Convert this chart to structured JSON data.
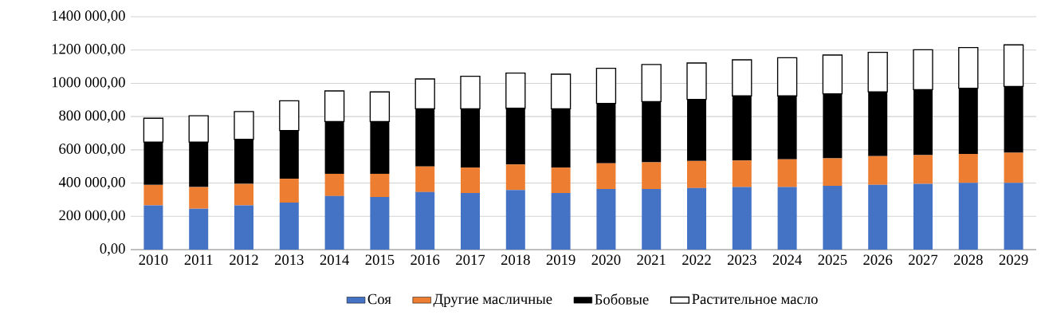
{
  "chart_data": {
    "type": "bar",
    "stacked": true,
    "categories": [
      "2010",
      "2011",
      "2012",
      "2013",
      "2014",
      "2015",
      "2016",
      "2017",
      "2018",
      "2019",
      "2020",
      "2021",
      "2022",
      "2023",
      "2024",
      "2025",
      "2026",
      "2027",
      "2028",
      "2029"
    ],
    "series": [
      {
        "name": "Соя",
        "color": "#4472c4",
        "values": [
          266000,
          246000,
          266000,
          283000,
          322000,
          316000,
          346000,
          340000,
          359000,
          340000,
          364000,
          364000,
          370000,
          376000,
          376000,
          383000,
          389000,
          395000,
          402000,
          402000
        ]
      },
      {
        "name": "Другие масличные",
        "color": "#ed7d31",
        "values": [
          123000,
          130000,
          129000,
          143000,
          134000,
          140000,
          154000,
          153000,
          153000,
          153000,
          155000,
          161000,
          163000,
          160000,
          167000,
          166000,
          173000,
          173000,
          173000,
          181000
        ]
      },
      {
        "name": "Бобовые",
        "color": "#000000",
        "values": [
          258000,
          271000,
          268000,
          290000,
          314000,
          314000,
          347000,
          354000,
          338000,
          354000,
          360000,
          365000,
          370000,
          388000,
          381000,
          388000,
          387000,
          394000,
          395000,
          398000
        ]
      },
      {
        "name": "Растительное масло",
        "color": "#000000",
        "values": [
          143000,
          158000,
          167000,
          179000,
          184000,
          178000,
          179000,
          195000,
          211000,
          208000,
          211000,
          223000,
          219000,
          217000,
          230000,
          233000,
          237000,
          240000,
          245000,
          250000
        ]
      }
    ],
    "ylim": [
      0,
      1400000
    ],
    "yticks": [
      {
        "value": 0,
        "label": "0,00"
      },
      {
        "value": 200000,
        "label": "200 000,00"
      },
      {
        "value": 400000,
        "label": "400 000,00"
      },
      {
        "value": 600000,
        "label": "600 000,00"
      },
      {
        "value": 800000,
        "label": "800 000,00"
      },
      {
        "value": 1000000,
        "label": "1000 000,00"
      },
      {
        "value": 1200000,
        "label": "1200 000,00"
      },
      {
        "value": 1400000,
        "label": "1400 000,00"
      }
    ],
    "grid": "y",
    "legend": "bottom"
  }
}
